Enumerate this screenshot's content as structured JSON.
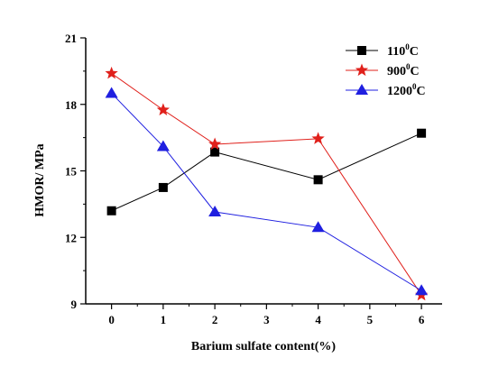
{
  "chart_data": {
    "type": "line",
    "xlabel": "Barium sulfate content(%)",
    "ylabel": "HMOR/ MPa",
    "xlim": [
      -0.5,
      6.4
    ],
    "ylim": [
      9,
      21
    ],
    "x_ticks": [
      0,
      1,
      2,
      3,
      4,
      5,
      6
    ],
    "y_ticks": [
      9,
      12,
      15,
      18,
      21
    ],
    "legend_position": "top-right",
    "grid": false,
    "series": [
      {
        "name_base": "110",
        "name_sup": "0",
        "name_unit": "C",
        "color": "#000000",
        "marker": "square",
        "x": [
          0,
          1,
          2,
          4,
          6
        ],
        "y": [
          13.2,
          14.25,
          15.85,
          14.6,
          16.7
        ]
      },
      {
        "name_base": "900",
        "name_sup": "0",
        "name_unit": "C",
        "color": "#e0201b",
        "marker": "star",
        "x": [
          0,
          1,
          2,
          4,
          6
        ],
        "y": [
          19.4,
          17.75,
          16.2,
          16.45,
          9.4
        ]
      },
      {
        "name_base": "1200",
        "name_sup": "0",
        "name_unit": "C",
        "color": "#1f1fe0",
        "marker": "triangle",
        "x": [
          0,
          1,
          2,
          4,
          6
        ],
        "y": [
          18.5,
          16.1,
          13.15,
          12.45,
          9.6
        ]
      }
    ]
  }
}
